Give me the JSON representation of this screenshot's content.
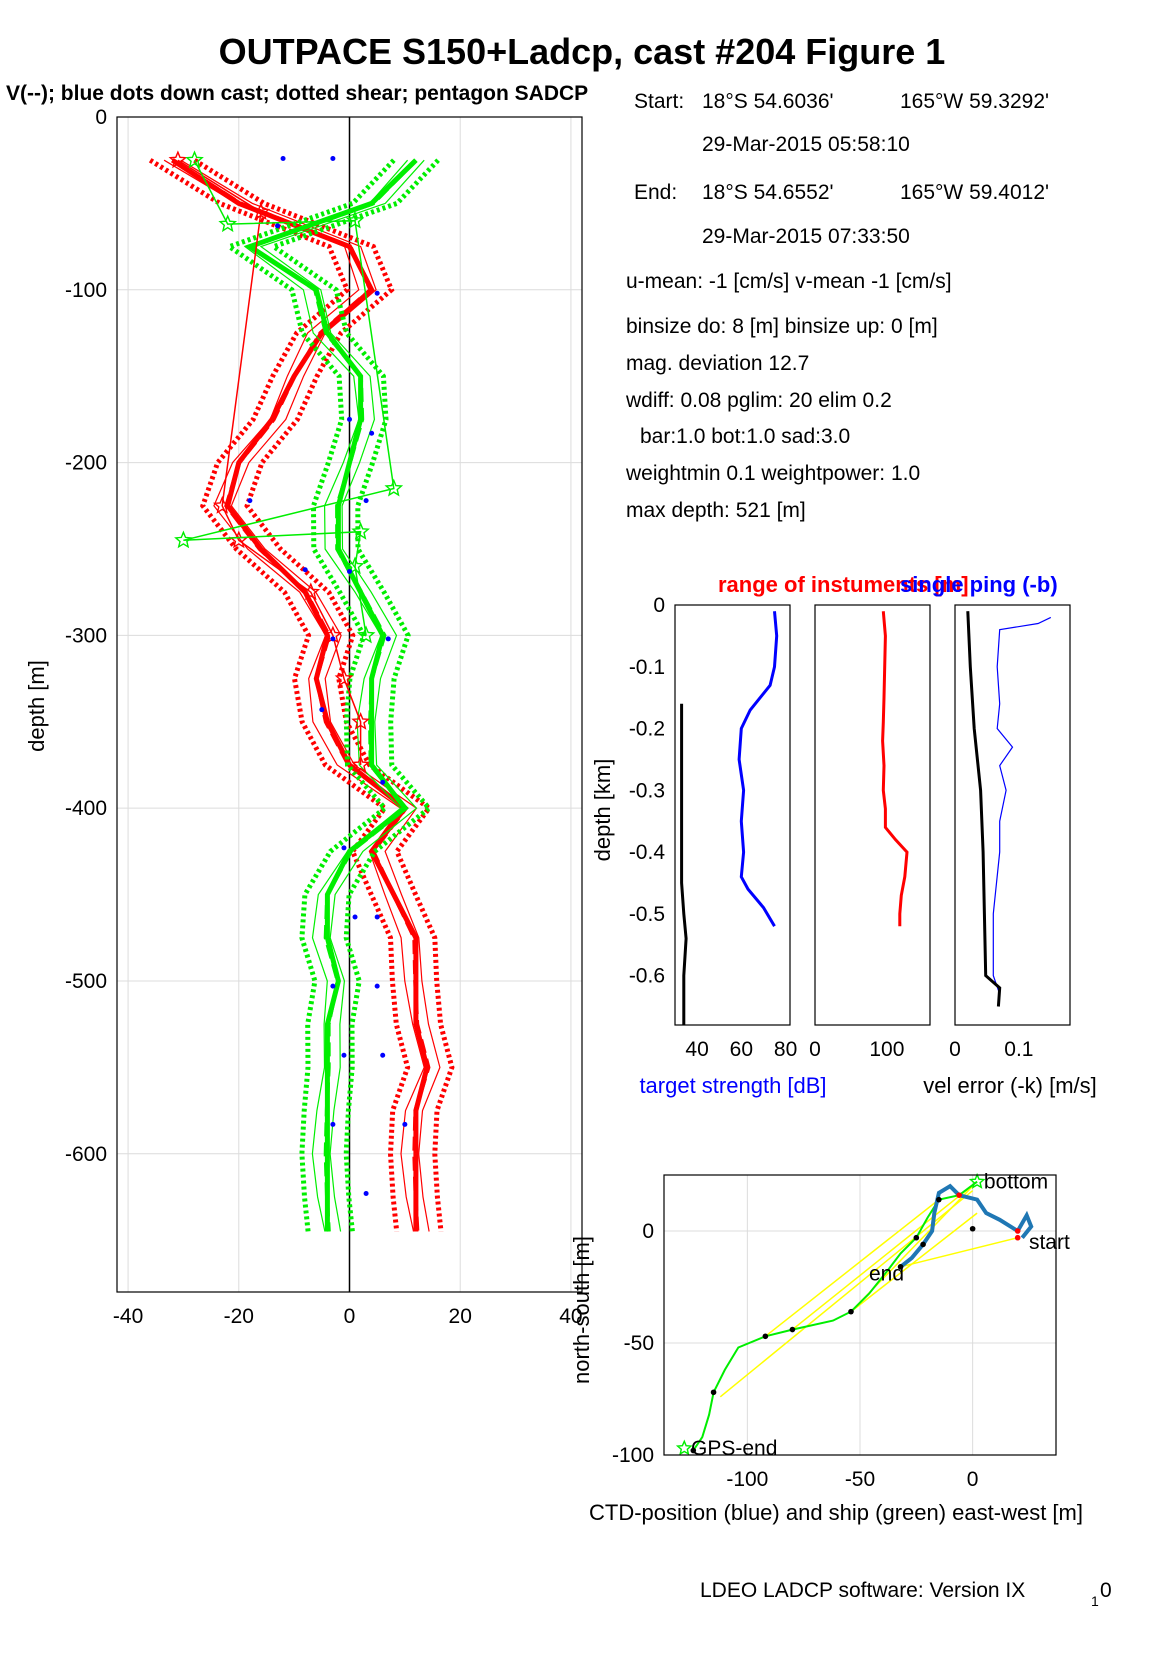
{
  "title": "OUTPACE S150+Ladcp, cast #204  Figure 1",
  "subtitle": "V(--); blue dots down cast; dotted shear; pentagon SADCP",
  "info": {
    "start_label": "Start:",
    "start_lat": "18°S 54.6036'",
    "start_lon": "165°W 59.3292'",
    "start_time": "29-Mar-2015 05:58:10",
    "end_label": "End:",
    "end_lat": "18°S 54.6552'",
    "end_lon": "165°W 59.4012'",
    "end_time": "29-Mar-2015 07:33:50",
    "mean": "u-mean:  -1 [cm/s]    v-mean  -1 [cm/s]",
    "binsize": "binsize do: 8 [m]  binsize up:  0 [m]",
    "magdev": "mag. deviation 12.7",
    "wdiff": "wdiff: 0.08  pglim: 20  elim 0.2",
    "bar": "bar:1.0 bot:1.0 sad:3.0",
    "weight": "weightmin 0.1  weightpower: 1.0",
    "maxdepth": "max depth: 521 [m]"
  },
  "footer": "LDEO LADCP software: Version IX",
  "footer_sub": "1",
  "footer_tail": "0",
  "colors": {
    "red": "#ff0000",
    "green": "#00ee00",
    "blue": "#0000ff",
    "black": "#000000",
    "yellow": "#ffff00",
    "ctd": "#1f77b4"
  },
  "chart_data": [
    {
      "id": "profile",
      "type": "line",
      "ylabel": "depth [m]",
      "xlim": [
        -42,
        42
      ],
      "ylim": [
        -680,
        0
      ],
      "xticks": [
        "-40",
        "-20",
        "0",
        "20",
        "40"
      ],
      "yticks": [
        "0",
        "-100",
        "-200",
        "-300",
        "-400",
        "-500",
        "-600"
      ],
      "grid": true,
      "depths": [
        -25,
        -50,
        -75,
        -100,
        -125,
        -150,
        -175,
        -200,
        -225,
        -250,
        -275,
        -300,
        -325,
        -350,
        -375,
        -400,
        -425,
        -450,
        -475,
        -500,
        -525,
        -550,
        -575,
        -600,
        -625,
        -645
      ],
      "series": [
        {
          "key": "u",
          "color": "red",
          "values": [
            -32,
            -20,
            0,
            4,
            -5,
            -10,
            -14,
            -20,
            -22,
            -16,
            -8,
            -4,
            -6,
            -4,
            0,
            10,
            4,
            8,
            12,
            12,
            12,
            14,
            12,
            12,
            12,
            12
          ]
        },
        {
          "key": "v",
          "color": "green",
          "values": [
            12,
            4,
            -18,
            -6,
            -4,
            2,
            2,
            0,
            -2,
            -2,
            2,
            6,
            4,
            4,
            4,
            10,
            0,
            -4,
            -4,
            -2,
            -4,
            -4,
            -4,
            -4,
            -4,
            -4
          ]
        }
      ],
      "sadcp": {
        "u": [
          [
            -31,
            -25
          ],
          [
            -16,
            -55
          ],
          [
            -23,
            -225
          ],
          [
            -20,
            -245
          ],
          [
            -7,
            -275
          ],
          [
            -3,
            -300
          ],
          [
            -1,
            -325
          ],
          [
            2,
            -350
          ],
          [
            2,
            -375
          ]
        ],
        "v": [
          [
            -28,
            -25
          ],
          [
            -22,
            -62
          ],
          [
            1,
            -60
          ],
          [
            8,
            -215
          ],
          [
            -30,
            -245
          ],
          [
            2,
            -240
          ],
          [
            1,
            -260
          ],
          [
            3,
            -300
          ]
        ]
      },
      "blue_dots": [
        [
          -12,
          -24
        ],
        [
          -3,
          -24
        ],
        [
          -13,
          -63
        ],
        [
          5,
          -102
        ],
        [
          0,
          -175
        ],
        [
          4,
          -183
        ],
        [
          -18,
          -222
        ],
        [
          3,
          -222
        ],
        [
          -8,
          -262
        ],
        [
          0,
          -263
        ],
        [
          -3,
          -302
        ],
        [
          7,
          -302
        ],
        [
          -5,
          -343
        ],
        [
          6,
          -385
        ],
        [
          -1,
          -423
        ],
        [
          1,
          -463
        ],
        [
          5,
          -463
        ],
        [
          -3,
          -503
        ],
        [
          5,
          -503
        ],
        [
          -1,
          -543
        ],
        [
          6,
          -543
        ],
        [
          -3,
          -583
        ],
        [
          10,
          -583
        ],
        [
          3,
          -623
        ]
      ]
    },
    {
      "id": "target_strength",
      "type": "line",
      "ylabel": "depth [km]",
      "xlabel": "target strength [dB]",
      "xlim": [
        30,
        82
      ],
      "ylim": [
        -0.68,
        0
      ],
      "xticks": [
        "40",
        "60",
        "80"
      ],
      "yticks": [
        "0",
        "-0.1",
        "-0.2",
        "-0.3",
        "-0.4",
        "-0.5",
        "-0.6"
      ],
      "series": [
        {
          "key": "ts",
          "color": "blue",
          "points": [
            [
              75,
              -0.01
            ],
            [
              76,
              -0.05
            ],
            [
              75,
              -0.1
            ],
            [
              73,
              -0.13
            ],
            [
              64,
              -0.17
            ],
            [
              60,
              -0.2
            ],
            [
              59,
              -0.25
            ],
            [
              61,
              -0.3
            ],
            [
              60,
              -0.35
            ],
            [
              61,
              -0.4
            ],
            [
              60,
              -0.44
            ],
            [
              63,
              -0.46
            ],
            [
              70,
              -0.49
            ],
            [
              75,
              -0.52
            ]
          ]
        },
        {
          "key": "bt",
          "color": "black",
          "points": [
            [
              33,
              -0.16
            ],
            [
              33,
              -0.3
            ],
            [
              33,
              -0.45
            ],
            [
              34,
              -0.5
            ],
            [
              35,
              -0.54
            ],
            [
              34,
              -0.6
            ],
            [
              34,
              -0.68
            ]
          ]
        }
      ]
    },
    {
      "id": "range",
      "type": "line",
      "title": "range of instumsingle ping (-b)",
      "title_red": "range of instuments [m]",
      "title_blue": "single ping (-b)",
      "xlim": [
        0,
        160
      ],
      "ylim": [
        -0.68,
        0
      ],
      "xticks": [
        "0",
        "100"
      ],
      "series": [
        {
          "key": "range",
          "color": "red",
          "points": [
            [
              95,
              -0.01
            ],
            [
              98,
              -0.05
            ],
            [
              97,
              -0.1
            ],
            [
              96,
              -0.15
            ],
            [
              95,
              -0.19
            ],
            [
              94,
              -0.22
            ],
            [
              96,
              -0.26
            ],
            [
              95,
              -0.3
            ],
            [
              98,
              -0.33
            ],
            [
              98,
              -0.36
            ],
            [
              112,
              -0.38
            ],
            [
              128,
              -0.4
            ],
            [
              125,
              -0.44
            ],
            [
              120,
              -0.47
            ],
            [
              118,
              -0.5
            ],
            [
              118,
              -0.52
            ]
          ]
        }
      ]
    },
    {
      "id": "vel_error",
      "type": "line",
      "xlabel": "vel error (-k) [m/s]",
      "xlim": [
        0,
        0.18
      ],
      "ylim": [
        -0.68,
        0
      ],
      "xticks": [
        "0",
        "0.1"
      ],
      "series": [
        {
          "key": "single_ping",
          "color": "blue",
          "points": [
            [
              0.15,
              -0.02
            ],
            [
              0.13,
              -0.03
            ],
            [
              0.07,
              -0.04
            ],
            [
              0.066,
              -0.1
            ],
            [
              0.07,
              -0.16
            ],
            [
              0.066,
              -0.2
            ],
            [
              0.09,
              -0.23
            ],
            [
              0.07,
              -0.26
            ],
            [
              0.08,
              -0.3
            ],
            [
              0.07,
              -0.35
            ],
            [
              0.07,
              -0.4
            ],
            [
              0.065,
              -0.45
            ],
            [
              0.06,
              -0.5
            ],
            [
              0.06,
              -0.6
            ],
            [
              0.07,
              -0.63
            ]
          ]
        },
        {
          "key": "vel_err",
          "color": "black",
          "points": [
            [
              0.02,
              -0.01
            ],
            [
              0.024,
              -0.1
            ],
            [
              0.03,
              -0.2
            ],
            [
              0.04,
              -0.3
            ],
            [
              0.044,
              -0.4
            ],
            [
              0.046,
              -0.5
            ],
            [
              0.048,
              -0.6
            ],
            [
              0.07,
              -0.62
            ],
            [
              0.068,
              -0.65
            ]
          ]
        }
      ]
    },
    {
      "id": "position",
      "type": "line",
      "xlabel": "CTD-position (blue) and ship (green) east-west [m]",
      "ylabel": "north-south [m]",
      "xlim": [
        -137,
        37
      ],
      "ylim": [
        -100,
        25
      ],
      "xticks": [
        "-100",
        "-50",
        "0"
      ],
      "yticks": [
        "0",
        "-50",
        "-100"
      ],
      "labels": {
        "bottom": "bottom",
        "start": "start",
        "end": "end",
        "gps_end": "GPS-end"
      },
      "ctd": [
        [
          22,
          -3
        ],
        [
          26,
          2
        ],
        [
          24,
          7
        ],
        [
          20,
          0
        ],
        [
          12,
          5
        ],
        [
          6,
          8
        ],
        [
          2,
          14
        ],
        [
          -6,
          16
        ],
        [
          -10,
          20
        ],
        [
          -15,
          17
        ],
        [
          -17,
          8
        ],
        [
          -18,
          0
        ],
        [
          -22,
          -6
        ],
        [
          -27,
          -12
        ],
        [
          -32,
          -16
        ]
      ],
      "ship": [
        [
          2,
          22
        ],
        [
          -6,
          16
        ],
        [
          -15,
          14
        ],
        [
          -20,
          6
        ],
        [
          -25,
          -3
        ],
        [
          -32,
          -10
        ],
        [
          -38,
          -18
        ],
        [
          -46,
          -28
        ],
        [
          -54,
          -36
        ],
        [
          -62,
          -40
        ],
        [
          -80,
          -44
        ],
        [
          -92,
          -47
        ],
        [
          -104,
          -52
        ],
        [
          -110,
          -62
        ],
        [
          -115,
          -72
        ],
        [
          -117,
          -82
        ],
        [
          -120,
          -92
        ],
        [
          -124,
          -98
        ]
      ],
      "links": [
        [
          [
            0,
            20
          ],
          [
            -54,
            -36
          ]
        ],
        [
          [
            2,
            22
          ],
          [
            -80,
            -44
          ]
        ],
        [
          [
            0,
            18
          ],
          [
            -112,
            -74
          ]
        ],
        [
          [
            20,
            -3
          ],
          [
            -32,
            -16
          ]
        ],
        [
          [
            2,
            8
          ],
          [
            -54,
            -36
          ]
        ],
        [
          [
            -15,
            14
          ],
          [
            -92,
            -47
          ]
        ]
      ]
    }
  ]
}
